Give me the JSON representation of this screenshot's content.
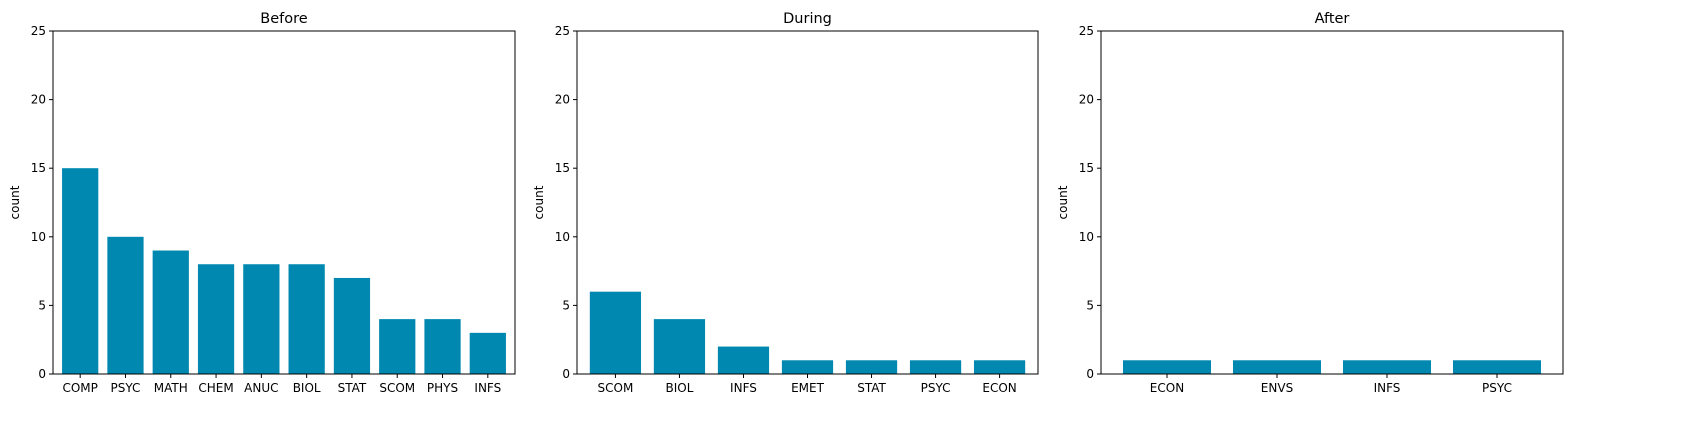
{
  "bar_color": "#0088b0",
  "chart_data": [
    {
      "type": "bar",
      "title": "Before",
      "xlabel": "",
      "ylabel": "count",
      "ylim": [
        0,
        25
      ],
      "yticks": [
        0,
        5,
        10,
        15,
        20,
        25
      ],
      "grid": false,
      "categories": [
        "COMP",
        "PSYC",
        "MATH",
        "CHEM",
        "ANUC",
        "BIOL",
        "STAT",
        "SCOM",
        "PHYS",
        "INFS"
      ],
      "values": [
        15,
        10,
        9,
        8,
        8,
        8,
        7,
        4,
        4,
        3
      ]
    },
    {
      "type": "bar",
      "title": "During",
      "xlabel": "",
      "ylabel": "count",
      "ylim": [
        0,
        25
      ],
      "yticks": [
        0,
        5,
        10,
        15,
        20,
        25
      ],
      "grid": false,
      "categories": [
        "SCOM",
        "BIOL",
        "INFS",
        "EMET",
        "STAT",
        "PSYC",
        "ECON"
      ],
      "values": [
        6,
        4,
        2,
        1,
        1,
        1,
        1
      ]
    },
    {
      "type": "bar",
      "title": "After",
      "xlabel": "",
      "ylabel": "count",
      "ylim": [
        0,
        25
      ],
      "yticks": [
        0,
        5,
        10,
        15,
        20,
        25
      ],
      "grid": false,
      "categories": [
        "ECON",
        "ENVS",
        "INFS",
        "PSYC"
      ],
      "values": [
        1,
        1,
        1,
        1
      ]
    }
  ]
}
